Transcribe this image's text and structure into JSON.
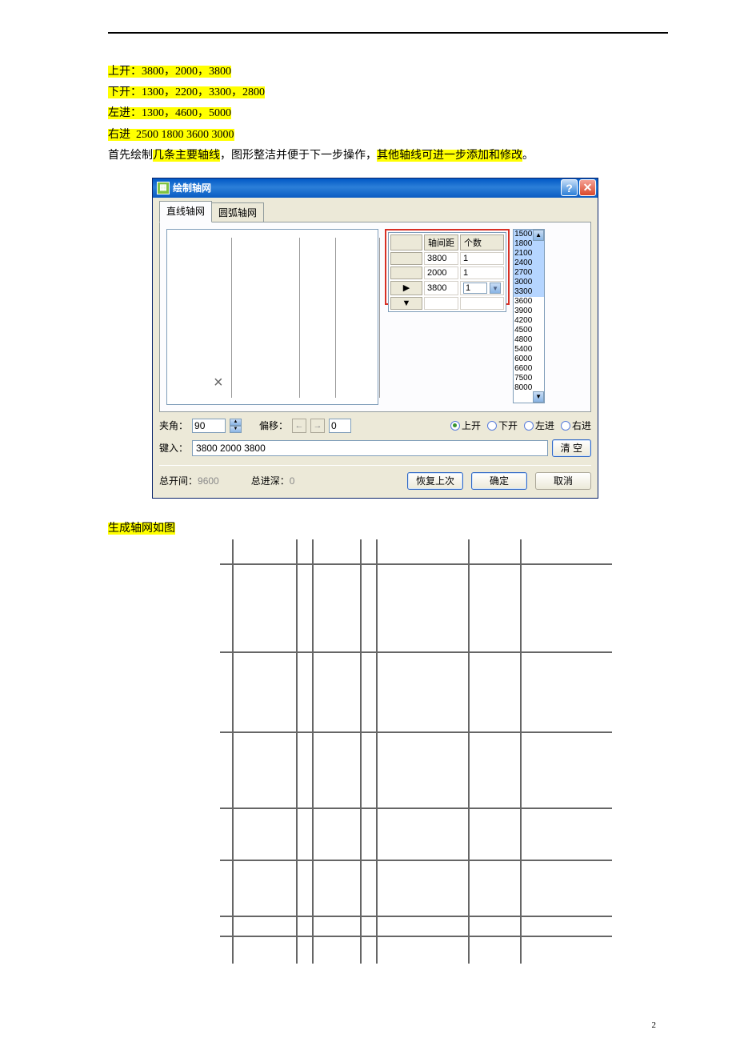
{
  "page_number": "2",
  "lines": {
    "l1_label": "上开：",
    "l1_values": "3800，2000，3800",
    "l2_label": "下开：",
    "l2_values": "1300，2200，3300，2800",
    "l3_label": "左进：",
    "l3_values": "1300，4600，5000",
    "l4_label": "右进",
    "l4_values": "2500  1800  3600  3000",
    "l5_pre": "首先绘制",
    "l5_hl1": "几条主要轴线",
    "l5_mid": "，图形整洁并便于下一步操作，",
    "l5_hl2": "其他轴线可进一步添加和修改",
    "l5_post": "。"
  },
  "dialog": {
    "title": "绘制轴网",
    "tab1": "直线轴网",
    "tab2": "圆弧轴网",
    "grid_hdr1": "轴间距",
    "grid_hdr2": "个数",
    "rows": [
      {
        "dist": "3800",
        "count": "1"
      },
      {
        "dist": "2000",
        "count": "1"
      },
      {
        "dist": "3800",
        "count": "1"
      }
    ],
    "presets": [
      "1500",
      "1800",
      "2100",
      "2400",
      "2700",
      "3000",
      "3300",
      "3600",
      "3900",
      "4200",
      "4500",
      "4800",
      "5400",
      "6000",
      "6600",
      "7500",
      "8000"
    ],
    "angle_label": "夹角：",
    "angle_value": "90",
    "offset_label": "偏移：",
    "offset_value": "0",
    "radio_up": "上开",
    "radio_down": "下开",
    "radio_left": "左进",
    "radio_right": "右进",
    "input_label": "键入：",
    "input_value": "3800 2000 3800",
    "clear_btn": "清  空",
    "total_span_label": "总开间：",
    "total_span_value": "9600",
    "total_depth_label": "总进深：",
    "total_depth_value": "0",
    "restore_btn": "恢复上次",
    "ok_btn": "确定",
    "cancel_btn": "取消"
  },
  "result_label": "生成轴网如图",
  "preview_vlines": [
    80,
    165,
    210,
    265
  ],
  "grid_result": {
    "h_positions": [
      30,
      140,
      240,
      335,
      400,
      470,
      495
    ],
    "v_positions": [
      35,
      115,
      135,
      195,
      215,
      330,
      395
    ]
  }
}
